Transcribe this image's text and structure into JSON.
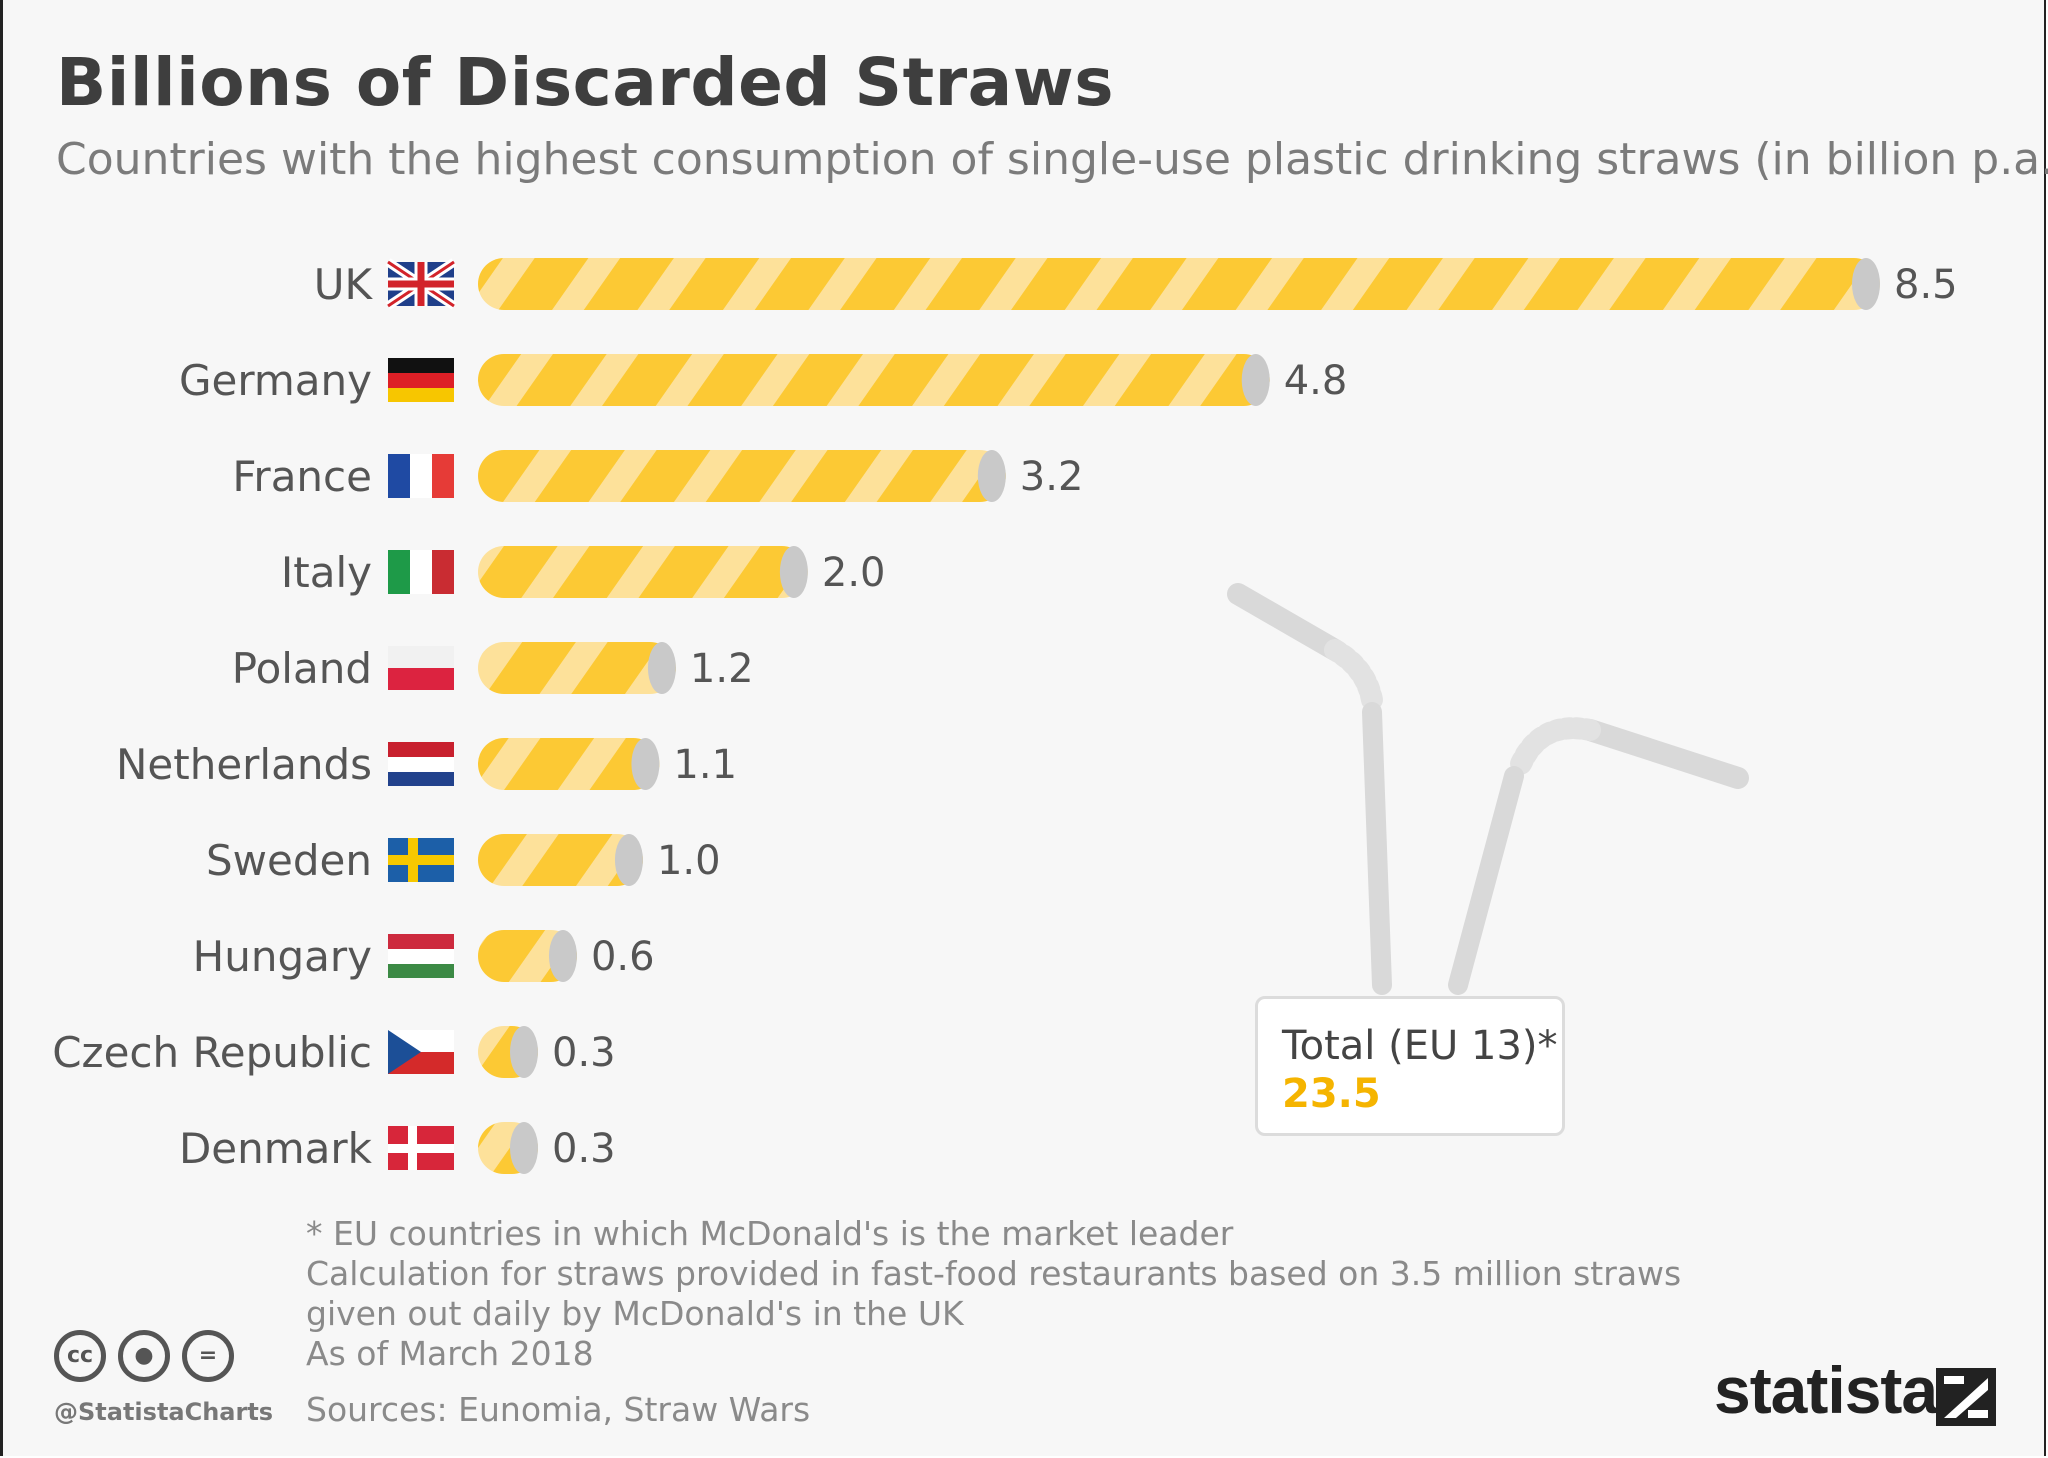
{
  "title": "Billions of Discarded Straws",
  "subtitle": "Countries with the highest consumption of single-use plastic drinking straws (in billion p.a.)",
  "chart_data": {
    "type": "bar",
    "orientation": "horizontal",
    "title": "Billions of Discarded Straws",
    "subtitle": "Countries with the highest consumption of single-use plastic drinking straws (in billion p.a.)",
    "categories": [
      "UK",
      "Germany",
      "France",
      "Italy",
      "Poland",
      "Netherlands",
      "Sweden",
      "Hungary",
      "Czech Republic",
      "Denmark"
    ],
    "values": [
      8.5,
      4.8,
      3.2,
      2.0,
      1.2,
      1.1,
      1.0,
      0.6,
      0.3,
      0.3
    ],
    "value_labels": [
      "8.5",
      "4.8",
      "3.2",
      "2.0",
      "1.2",
      "1.1",
      "1.0",
      "0.6",
      "0.3",
      "0.3"
    ],
    "xlim": [
      0,
      8.5
    ],
    "grid": false,
    "bar_color": "#fcc934",
    "bar_stripe_color": "#fde19a",
    "bar_cap_color": "#c9c9c9",
    "flags": [
      "uk-flag-icon",
      "germany-flag-icon",
      "france-flag-icon",
      "italy-flag-icon",
      "poland-flag-icon",
      "netherlands-flag-icon",
      "sweden-flag-icon",
      "hungary-flag-icon",
      "czech-flag-icon",
      "denmark-flag-icon"
    ]
  },
  "total": {
    "label": "Total (EU 13)*",
    "value": "23.5"
  },
  "notes": [
    "* EU countries in which McDonald's is the market leader",
    "Calculation for straws provided in fast-food restaurants based on 3.5 million straws",
    "given out daily by McDonald's in the UK",
    "As of March 2018"
  ],
  "sources": "Sources: Eunomia, Straw Wars",
  "handle": "@StatistaCharts",
  "logo": "statista",
  "colors": {
    "accent": "#f5b400",
    "text": "#555555"
  }
}
